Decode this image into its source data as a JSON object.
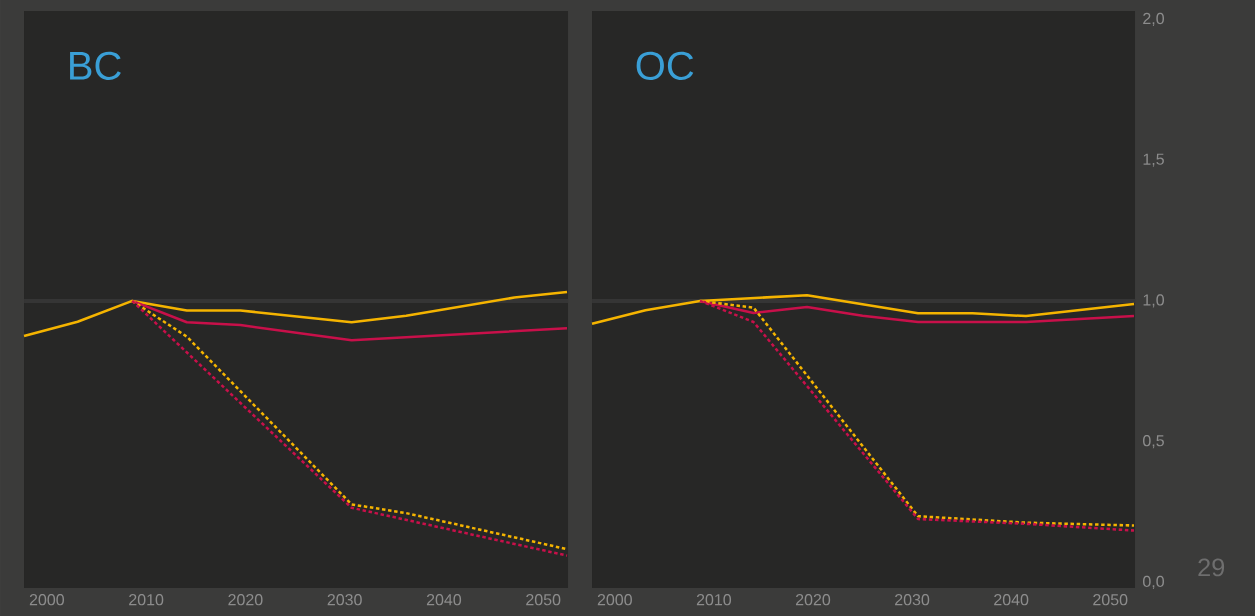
{
  "chart_data": [
    {
      "type": "line",
      "title": "BC",
      "xlim": [
        1997.7,
        2052.5
      ],
      "ylim": [
        -0.02,
        2.03
      ],
      "xticks": [
        2000,
        2010,
        2020,
        2030,
        2040,
        2050
      ],
      "tick_labels": "x",
      "ref_lines": [
        {
          "axis": "y",
          "value": 1,
          "color": "#353535"
        }
      ],
      "series": [
        {
          "color": "#f5b400",
          "line_style": "solid",
          "x": [
            1997.7,
            2003.1,
            2008.6,
            2014.1,
            2019.5,
            2030.7,
            2036.2,
            2047.1,
            2052.4
          ],
          "values": [
            0.875,
            0.926,
            1.0,
            0.966,
            0.966,
            0.924,
            0.947,
            1.012,
            1.032
          ]
        },
        {
          "color": "#c8104a",
          "line_style": "solid",
          "x": [
            2008.6,
            2014.1,
            2019.5,
            2030.7,
            2052.4
          ],
          "values": [
            1.0,
            0.924,
            0.914,
            0.86,
            0.903
          ]
        },
        {
          "color": "#f5b400",
          "line_style": "dotted",
          "x": [
            2008.6,
            2014.1,
            2030.7,
            2036.2,
            2052.4
          ],
          "values": [
            1.0,
            0.873,
            0.277,
            0.246,
            0.118
          ]
        },
        {
          "color": "#c8104a",
          "line_style": "dotted",
          "x": [
            2008.6,
            2030.7,
            2052.4
          ],
          "values": [
            1.0,
            0.265,
            0.095
          ]
        }
      ]
    },
    {
      "type": "line",
      "title": "OC",
      "xlim": [
        1997.7,
        2052.5
      ],
      "ylim": [
        -0.02,
        2.03
      ],
      "xticks": [
        2000,
        2010,
        2020,
        2030,
        2040,
        2050
      ],
      "yticks": [
        {
          "value": 0,
          "label": "0,0"
        },
        {
          "value": 0.5,
          "label": "0,5"
        },
        {
          "value": 1,
          "label": "1,0"
        },
        {
          "value": 1.5,
          "label": "1,5"
        },
        {
          "value": 2,
          "label": "2,0"
        }
      ],
      "ref_lines": [
        {
          "axis": "y",
          "value": 1,
          "color": "#353535"
        }
      ],
      "annotations": [
        "29"
      ],
      "series": [
        {
          "color": "#f5b400",
          "line_style": "solid",
          "x": [
            1997.7,
            2003.1,
            2008.6,
            2019.4,
            2030.6,
            2036.1,
            2041.5,
            2052.4
          ],
          "values": [
            0.919,
            0.967,
            1.0,
            1.02,
            0.956,
            0.956,
            0.946,
            0.989
          ]
        },
        {
          "color": "#c8104a",
          "line_style": "solid",
          "x": [
            2008.6,
            2014.0,
            2019.4,
            2025.0,
            2030.6,
            2041.5,
            2052.4
          ],
          "values": [
            1.0,
            0.957,
            0.978,
            0.947,
            0.925,
            0.925,
            0.946
          ]
        },
        {
          "color": "#f5b400",
          "line_style": "dotted",
          "x": [
            2008.6,
            2014.0,
            2030.6,
            2041.5,
            2052.4
          ],
          "values": [
            1.0,
            0.976,
            0.235,
            0.212,
            0.202
          ]
        },
        {
          "color": "#c8104a",
          "line_style": "dotted",
          "x": [
            2008.6,
            2014.0,
            2030.6,
            2041.5,
            2052.4
          ],
          "values": [
            1.0,
            0.925,
            0.225,
            0.208,
            0.184
          ]
        }
      ]
    }
  ]
}
